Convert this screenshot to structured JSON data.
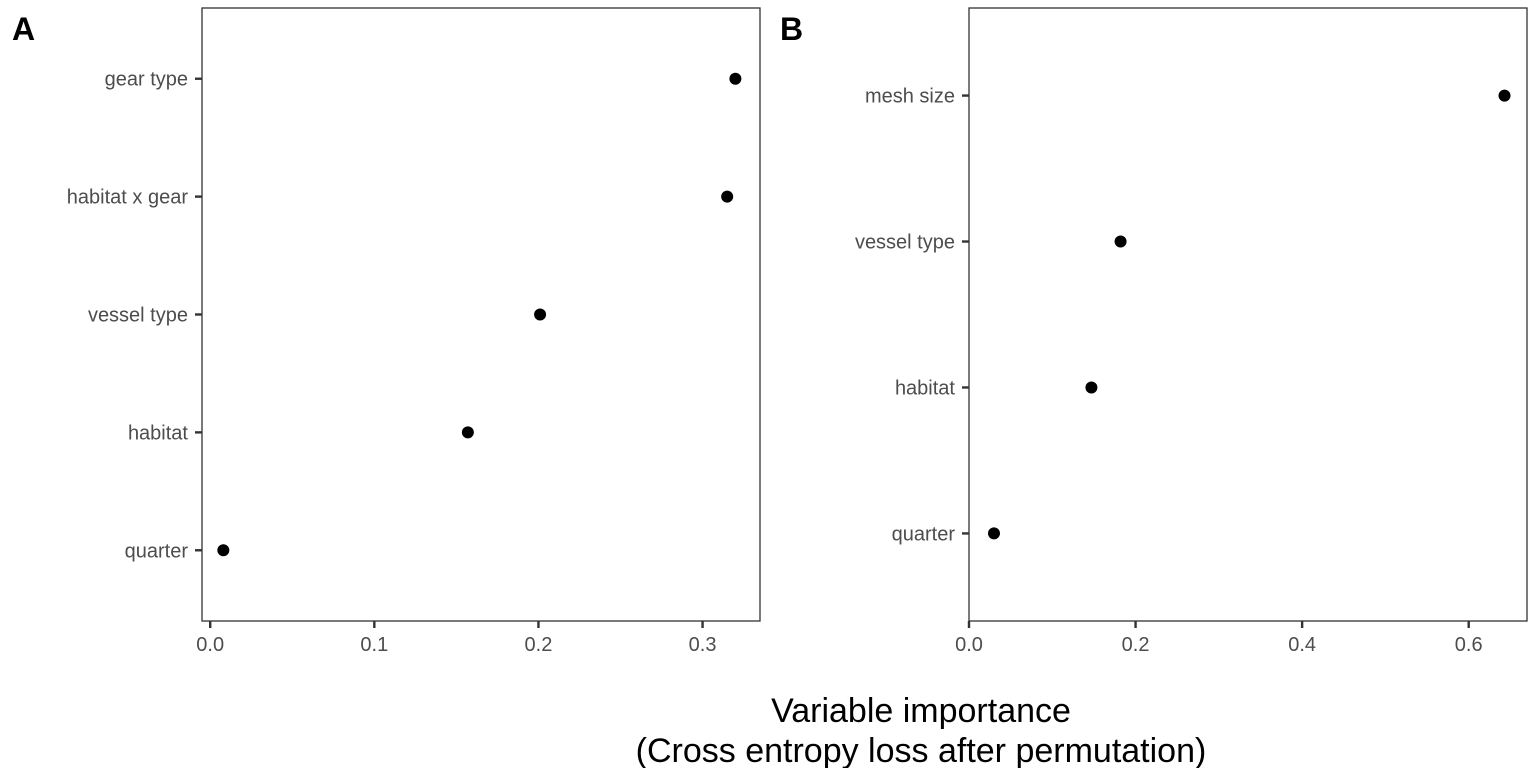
{
  "xlabel_lines": [
    "Variable importance",
    "(Cross entropy loss after permutation)"
  ],
  "chart_data": [
    {
      "type": "scatter",
      "panel": "A",
      "categories": [
        "gear type",
        "habitat x gear",
        "vessel type",
        "habitat",
        "quarter"
      ],
      "values": [
        0.32,
        0.315,
        0.201,
        0.157,
        0.008
      ],
      "xlim": [
        -0.005,
        0.335
      ],
      "xticks": [
        0.0,
        0.1,
        0.2,
        0.3
      ],
      "xtick_labels": [
        "0.0",
        "0.1",
        "0.2",
        "0.3"
      ],
      "grid": false,
      "point_color": "#000000"
    },
    {
      "type": "scatter",
      "panel": "B",
      "categories": [
        "mesh size",
        "vessel type",
        "habitat",
        "quarter"
      ],
      "values": [
        0.643,
        0.182,
        0.147,
        0.03
      ],
      "xlim": [
        0.0,
        0.67
      ],
      "xticks": [
        0.0,
        0.2,
        0.4,
        0.6
      ],
      "xtick_labels": [
        "0.0",
        "0.2",
        "0.4",
        "0.6"
      ],
      "grid": false,
      "point_color": "#000000"
    }
  ]
}
